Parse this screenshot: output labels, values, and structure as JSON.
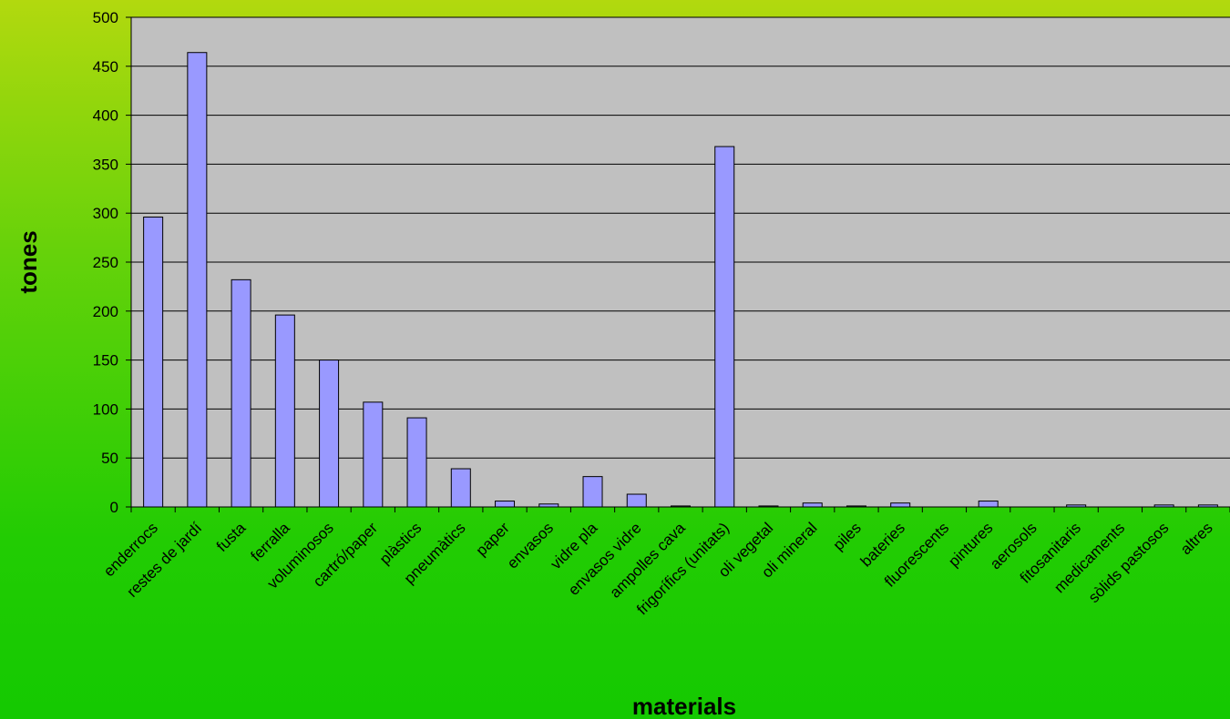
{
  "chart_data": {
    "type": "bar",
    "xlabel": "materials",
    "ylabel": "tones",
    "ylim": [
      0,
      500
    ],
    "yticks": [
      0,
      50,
      100,
      150,
      200,
      250,
      300,
      350,
      400,
      450,
      500
    ],
    "grid": true,
    "categories": [
      "enderrocs",
      "restes de jardí",
      "fusta",
      "ferralla",
      "voluminosos",
      "cartró/paper",
      "plàstics",
      "pneumàtics",
      "paper",
      "envasos",
      "vidre pla",
      "envasos vidre",
      "ampolles cava",
      "frigorífics (unitats)",
      "oli vegetal",
      "oli mineral",
      "piles",
      "bateries",
      "fluorescents",
      "pintures",
      "aerosols",
      "fitosanitaris",
      "medicaments",
      "sòlids pastosos",
      "altres"
    ],
    "values": [
      296,
      464,
      232,
      196,
      150,
      107,
      91,
      39,
      6,
      3,
      31,
      13,
      1,
      368,
      1,
      4,
      1,
      4,
      0,
      6,
      0,
      2,
      0,
      2,
      2
    ],
    "colors": {
      "bar_fill": "#9999ff",
      "bar_stroke": "#000000",
      "plot_bg": "#c0c0c0",
      "grid": "#000000"
    }
  }
}
